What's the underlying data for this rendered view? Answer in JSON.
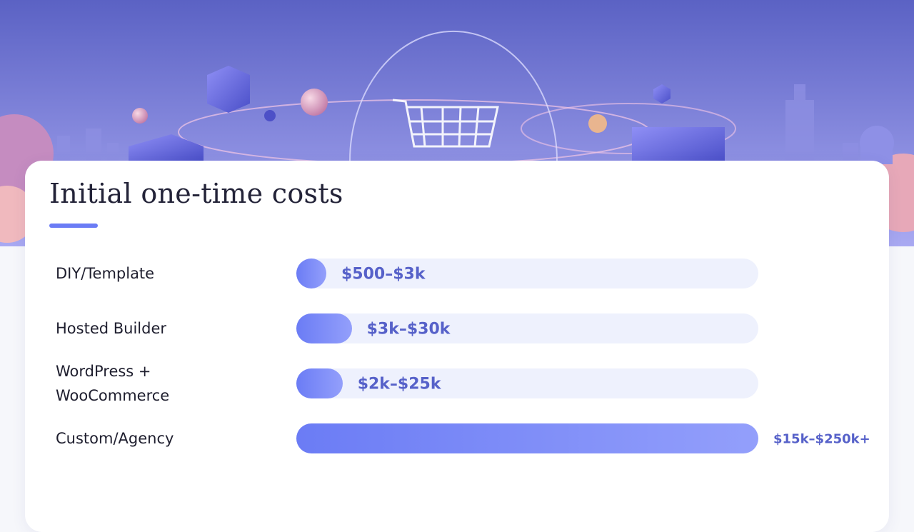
{
  "chart_data": {
    "type": "bar",
    "orientation": "horizontal",
    "title": "Initial one-time costs",
    "categories": [
      "DIY/Template",
      "Hosted Builder",
      "WordPress + WooCommerce",
      "Custom/Agency"
    ],
    "values": [
      3000,
      30000,
      25000,
      250000
    ],
    "value_labels": [
      "$500–$3k",
      "$3k–$30k",
      "$2k–$25k",
      "$15k–$250k+"
    ],
    "color": "#6b7cf5",
    "xlim": [
      0,
      250000
    ]
  }
}
